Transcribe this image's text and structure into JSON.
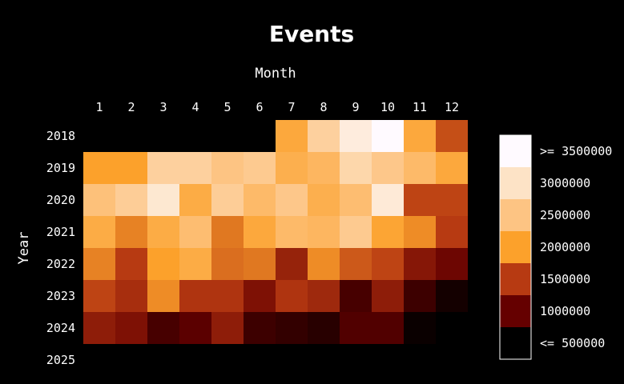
{
  "chart_data": {
    "type": "heatmap",
    "title": "Events",
    "xlabel": "Month",
    "ylabel": "Year",
    "x": [
      "1",
      "2",
      "3",
      "4",
      "5",
      "6",
      "7",
      "8",
      "9",
      "10",
      "11",
      "12"
    ],
    "y": [
      "2018",
      "2019",
      "2020",
      "2021",
      "2022",
      "2023",
      "2024",
      "2025"
    ],
    "values": [
      [
        null,
        null,
        null,
        null,
        null,
        null,
        2100000,
        2700000,
        3200000,
        3600000,
        2100000,
        1600000
      ],
      [
        2000000,
        2000000,
        2700000,
        2700000,
        2500000,
        2600000,
        2200000,
        2300000,
        2800000,
        2550000,
        2350000,
        2100000
      ],
      [
        2450000,
        2650000,
        3100000,
        2150000,
        2650000,
        2350000,
        2550000,
        2200000,
        2400000,
        3150000,
        1550000,
        1550000
      ],
      [
        2150000,
        1850000,
        2150000,
        2400000,
        1800000,
        2100000,
        2350000,
        2300000,
        2600000,
        2050000,
        1900000,
        1500000
      ],
      [
        1850000,
        1500000,
        2000000,
        2150000,
        1750000,
        1800000,
        1300000,
        1900000,
        1650000,
        1550000,
        1200000,
        1050000
      ],
      [
        1550000,
        1400000,
        1900000,
        1450000,
        1450000,
        1150000,
        1450000,
        1350000,
        850000,
        1250000,
        800000,
        600000
      ],
      [
        1250000,
        1150000,
        850000,
        950000,
        1250000,
        800000,
        750000,
        700000,
        900000,
        900000,
        550000,
        500000
      ],
      [
        500000,
        null,
        null,
        null,
        null,
        null,
        null,
        null,
        null,
        null,
        null,
        null
      ]
    ],
    "colorbar": {
      "labels": [
        ">= 3500000",
        "3000000",
        "2500000",
        "2000000",
        "1500000",
        "1000000",
        "<= 500000"
      ],
      "colors": [
        "#fffaff",
        "#fde3c6",
        "#fdc483",
        "#fca12b",
        "#b73a12",
        "#650000",
        "#000000"
      ],
      "placement": "right"
    },
    "color_scale": {
      "min": 500000,
      "max": 3500000,
      "stops": [
        "#000000",
        "#650000",
        "#b73a12",
        "#fca12b",
        "#fdc483",
        "#fde3c6",
        "#fffaff"
      ]
    }
  }
}
